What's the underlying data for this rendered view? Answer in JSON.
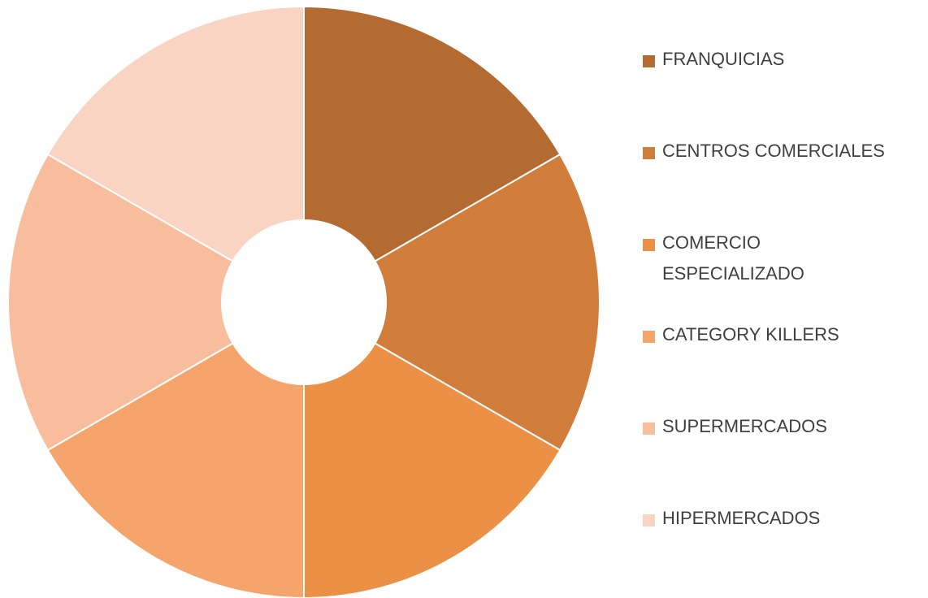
{
  "chart_data": {
    "type": "donut",
    "categories": [
      "FRANQUICIAS",
      "CENTROS COMERCIALES",
      "COMERCIO ESPECIALIZADO",
      "CATEGORY KILLERS",
      "SUPERMERCADOS",
      "HIPERMERCADOS"
    ],
    "values": [
      1,
      1,
      1,
      1,
      1,
      1
    ],
    "colors": [
      "#b46b32",
      "#d17d3b",
      "#ec9045",
      "#f5a56b",
      "#f7bd9d",
      "#f9d4c2"
    ],
    "legend": "right"
  }
}
